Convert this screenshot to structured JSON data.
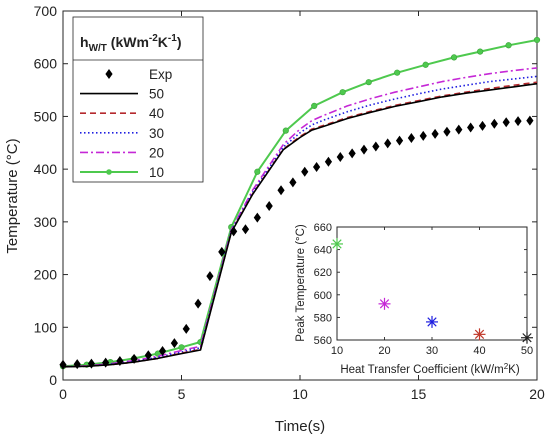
{
  "chart_data": [
    {
      "type": "line",
      "xlabel": "Time(s)",
      "ylabel": "Temperature (°C)",
      "xlim": [
        0,
        20
      ],
      "ylim": [
        0,
        700
      ],
      "xticks": [
        0,
        5,
        10,
        15,
        20
      ],
      "yticks": [
        0,
        100,
        200,
        300,
        400,
        500,
        600,
        700
      ],
      "grid": false,
      "legend": {
        "placement": "top-left",
        "title_main": "h",
        "title_sub": "W/T",
        "title_unit": " (kWm",
        "title_exp1": "-2",
        "title_k": "K",
        "title_exp2": "-1",
        "title_close": ")"
      },
      "series": [
        {
          "name": "Exp",
          "style": "diamond-markers",
          "color": "#000000",
          "x": [
            0,
            0.6,
            1.2,
            1.8,
            2.4,
            3.0,
            3.6,
            4.2,
            4.7,
            5.2,
            5.7,
            6.2,
            6.7,
            7.2,
            7.7,
            8.2,
            8.7,
            9.2,
            9.7,
            10.2,
            10.7,
            11.2,
            11.7,
            12.2,
            12.7,
            13.2,
            13.7,
            14.2,
            14.7,
            15.2,
            15.7,
            16.2,
            16.7,
            17.2,
            17.7,
            18.2,
            18.7,
            19.2,
            19.7
          ],
          "y": [
            29,
            30,
            31,
            33,
            36,
            40,
            47,
            55,
            70,
            97,
            145,
            197,
            243,
            282,
            286,
            308,
            330,
            360,
            375,
            395,
            404,
            414,
            423,
            430,
            437,
            443,
            449,
            454,
            459,
            463,
            467,
            471,
            475,
            479,
            482,
            486,
            489,
            491,
            492
          ]
        },
        {
          "name": "50",
          "style": "solid",
          "color": "#000000",
          "x": [
            0,
            1,
            2,
            3,
            4,
            5,
            5.8,
            7.1,
            8,
            9.3,
            10,
            10.5,
            11,
            12,
            13,
            14,
            15,
            16,
            17,
            18,
            19,
            20
          ],
          "y": [
            25,
            26,
            29,
            34,
            41,
            50,
            57,
            280,
            352,
            437,
            460,
            474,
            481,
            496,
            508,
            519,
            528,
            537,
            544,
            550,
            556,
            562
          ]
        },
        {
          "name": "40",
          "style": "dashed",
          "color": "#b5292e",
          "x": [
            0,
            1,
            2,
            3,
            4,
            5,
            5.8,
            7.1,
            8,
            9.3,
            10,
            10.5,
            11,
            12,
            13,
            14,
            15,
            16,
            17,
            18,
            19,
            20
          ],
          "y": [
            25,
            26,
            29,
            34,
            41,
            51,
            58,
            281,
            353,
            438,
            462,
            476,
            483,
            498,
            510,
            521,
            530,
            539,
            546,
            553,
            559,
            565
          ]
        },
        {
          "name": "30",
          "style": "dotted",
          "color": "#1e1ee0",
          "x": [
            0,
            1,
            2,
            3,
            4,
            5,
            5.8,
            7.1,
            8,
            9.3,
            10,
            10.5,
            11,
            12,
            13,
            14,
            15,
            16,
            17,
            18,
            19,
            20
          ],
          "y": [
            25,
            26,
            30,
            35,
            43,
            53,
            61,
            283,
            356,
            442,
            469,
            484,
            493,
            509,
            522,
            533,
            543,
            552,
            559,
            566,
            571,
            576
          ]
        },
        {
          "name": "20",
          "style": "dashdot",
          "color": "#c528d6",
          "x": [
            0,
            1,
            2,
            3,
            4,
            5,
            5.8,
            7.1,
            8,
            9.3,
            10,
            10.5,
            11,
            12,
            13,
            14,
            15,
            16,
            17,
            18,
            19,
            20
          ],
          "y": [
            25,
            27,
            31,
            37,
            45,
            56,
            64,
            285,
            360,
            447,
            476,
            492,
            502,
            520,
            534,
            546,
            556,
            566,
            574,
            581,
            587,
            592
          ]
        },
        {
          "name": "10",
          "style": "solid-markers",
          "color": "#4ec94e",
          "x": [
            0,
            1,
            2,
            3,
            4,
            5,
            5.8,
            7.1,
            8.2,
            9.4,
            10.6,
            11.8,
            12.9,
            14.1,
            15.3,
            16.5,
            17.6,
            18.8,
            20
          ],
          "y": [
            26,
            29,
            34,
            41,
            50,
            62,
            72,
            290,
            395,
            473,
            520,
            546,
            565,
            583,
            598,
            612,
            623,
            635,
            645
          ]
        }
      ]
    },
    {
      "type": "scatter",
      "placement": "inset",
      "xlabel": "Heat Transfer Coefficient (kW/m",
      "xlabel_sup": "2",
      "xlabel_tail": "K)",
      "ylabel": "Peak Temperature (°C)",
      "xlim": [
        10,
        50
      ],
      "ylim": [
        560,
        660
      ],
      "xticks": [
        10,
        20,
        30,
        40,
        50
      ],
      "yticks": [
        560,
        580,
        600,
        620,
        640,
        660
      ],
      "marker": "asterisk",
      "points": [
        {
          "x": 10,
          "y": 645,
          "color": "#4ec94e"
        },
        {
          "x": 20,
          "y": 592,
          "color": "#c528d6"
        },
        {
          "x": 30,
          "y": 576,
          "color": "#1e1ee0"
        },
        {
          "x": 40,
          "y": 565,
          "color": "#c0392b"
        },
        {
          "x": 50,
          "y": 562,
          "color": "#222222"
        }
      ]
    }
  ]
}
